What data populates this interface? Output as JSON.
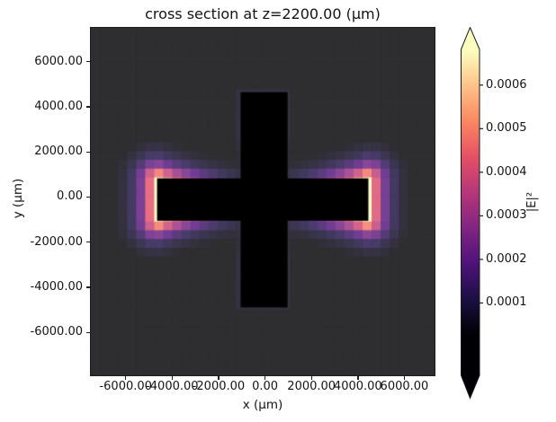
{
  "figure": {
    "background": "#ffffff",
    "text_color": "#141414"
  },
  "chart_data": {
    "type": "heatmap",
    "title": "cross section at z=2200.00 (µm)",
    "xlabel": "x (µm)",
    "ylabel": "y (µm)",
    "colorbar_label": "|E|²",
    "colormap": "magma",
    "colormap_stops": [
      [
        0.0,
        0,
        0,
        4
      ],
      [
        0.125,
        28,
        16,
        68
      ],
      [
        0.25,
        79,
        18,
        123
      ],
      [
        0.375,
        129,
        37,
        129
      ],
      [
        0.5,
        182,
        54,
        121
      ],
      [
        0.625,
        229,
        80,
        100
      ],
      [
        0.75,
        251,
        135,
        97
      ],
      [
        0.875,
        254,
        194,
        135
      ],
      [
        1.0,
        252,
        253,
        191
      ]
    ],
    "x_range_um": [
      -7500,
      7300
    ],
    "y_range_um": [
      -7900,
      7500
    ],
    "x_ticks": {
      "values": [
        -6000,
        -4000,
        -2000,
        0,
        2000,
        4000,
        6000
      ],
      "labels": [
        "-6000.00",
        "-4000.00",
        "-2000.00",
        "0.00",
        "2000.00",
        "4000.00",
        "6000.00"
      ]
    },
    "y_ticks": {
      "values": [
        6000,
        4000,
        2000,
        0,
        -2000,
        -4000,
        -6000
      ],
      "labels": [
        "6000.00",
        "4000.00",
        "2000.00",
        "0.00",
        "-2000.00",
        "-4000.00",
        "-6000.00"
      ]
    },
    "colorbar_ticks": {
      "values": [
        0.0006,
        0.0005,
        0.0004,
        0.0003,
        0.0002,
        0.0001
      ],
      "labels": [
        "0.0006",
        "0.0005",
        "0.0004",
        "0.0003",
        "0.0002",
        "0.0001"
      ]
    },
    "colorbar_scale": {
      "extend": "both",
      "value_at_bar_top": 0.000682,
      "value_at_bar_bottom": -6.6e-05
    },
    "norm": {
      "vmin": 3e-05,
      "vmax": 0.00068
    },
    "field_alpha_over_white": 0.82,
    "grid_cell_um": 390,
    "structure_color": "#000000",
    "structures": {
      "horizontal_bar_um": {
        "x": [
          -4650,
          4450
        ],
        "y": [
          -1050,
          830
        ]
      },
      "vertical_bar_um": {
        "x": [
          -1050,
          970
        ],
        "y": [
          -4890,
          4650
        ]
      }
    },
    "field_model": {
      "description": "guided-mode intensity hugging the horizontal bar, brightest at its end facets, exponentially decaying outward; faint halo at vertical bar tips",
      "peak": 0.00076,
      "decay_um": 560,
      "end_decay_um": 1700,
      "tip_peak": 5.5e-05,
      "tip_decay_um": 320
    }
  }
}
